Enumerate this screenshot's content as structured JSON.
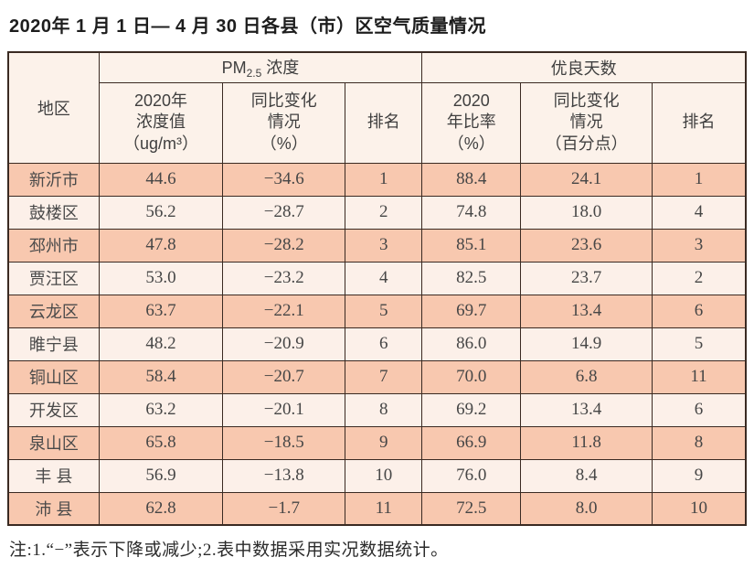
{
  "title": "2020年 1 月 1 日— 4 月 30 日各县（市）区空气质量情况",
  "table": {
    "header": {
      "region": "地区",
      "pm_group": {
        "main": "PM",
        "sub": "2.5",
        "rest": " 浓度"
      },
      "good_group": "优良天数",
      "pm_value": {
        "line1": "2020年",
        "line2": "浓度值",
        "line3": "（ug/m³）"
      },
      "pm_change": {
        "line1": "同比变化",
        "line2": "情况",
        "line3": "（%）"
      },
      "pm_rank": "排名",
      "good_ratio": {
        "line1": "2020",
        "line2": "年比率",
        "line3": "（%）"
      },
      "good_change": {
        "line1": "同比变化",
        "line2": "情况",
        "line3": "（百分点）"
      },
      "good_rank": "排名"
    },
    "rows": [
      {
        "region": "新沂市",
        "pm_value": "44.6",
        "pm_change": "−34.6",
        "pm_rank": "1",
        "good_ratio": "88.4",
        "good_change": "24.1",
        "good_rank": "1"
      },
      {
        "region": "鼓楼区",
        "pm_value": "56.2",
        "pm_change": "−28.7",
        "pm_rank": "2",
        "good_ratio": "74.8",
        "good_change": "18.0",
        "good_rank": "4"
      },
      {
        "region": "邳州市",
        "pm_value": "47.8",
        "pm_change": "−28.2",
        "pm_rank": "3",
        "good_ratio": "85.1",
        "good_change": "23.6",
        "good_rank": "3"
      },
      {
        "region": "贾汪区",
        "pm_value": "53.0",
        "pm_change": "−23.2",
        "pm_rank": "4",
        "good_ratio": "82.5",
        "good_change": "23.7",
        "good_rank": "2"
      },
      {
        "region": "云龙区",
        "pm_value": "63.7",
        "pm_change": "−22.1",
        "pm_rank": "5",
        "good_ratio": "69.7",
        "good_change": "13.4",
        "good_rank": "6"
      },
      {
        "region": "睢宁县",
        "pm_value": "48.2",
        "pm_change": "−20.9",
        "pm_rank": "6",
        "good_ratio": "86.0",
        "good_change": "14.9",
        "good_rank": "5"
      },
      {
        "region": "铜山区",
        "pm_value": "58.4",
        "pm_change": "−20.7",
        "pm_rank": "7",
        "good_ratio": "70.0",
        "good_change": "6.8",
        "good_rank": "11"
      },
      {
        "region": "开发区",
        "pm_value": "63.2",
        "pm_change": "−20.1",
        "pm_rank": "8",
        "good_ratio": "69.2",
        "good_change": "13.4",
        "good_rank": "6"
      },
      {
        "region": "泉山区",
        "pm_value": "65.8",
        "pm_change": "−18.5",
        "pm_rank": "9",
        "good_ratio": "66.9",
        "good_change": "11.8",
        "good_rank": "8"
      },
      {
        "region": "丰 县",
        "pm_value": "56.9",
        "pm_change": "−13.8",
        "pm_rank": "10",
        "good_ratio": "76.0",
        "good_change": "8.4",
        "good_rank": "9"
      },
      {
        "region": "沛 县",
        "pm_value": "62.8",
        "pm_change": "−1.7",
        "pm_rank": "11",
        "good_ratio": "72.5",
        "good_change": "8.0",
        "good_rank": "10"
      }
    ]
  },
  "footnote": "注:1.“−”表示下降或减少;2.表中数据采用实况数据统计。",
  "colors": {
    "row_odd": "#f8c8af",
    "row_even": "#fcf0e9",
    "header_bg": "#fcf2ea",
    "border": "#3a2a22"
  }
}
